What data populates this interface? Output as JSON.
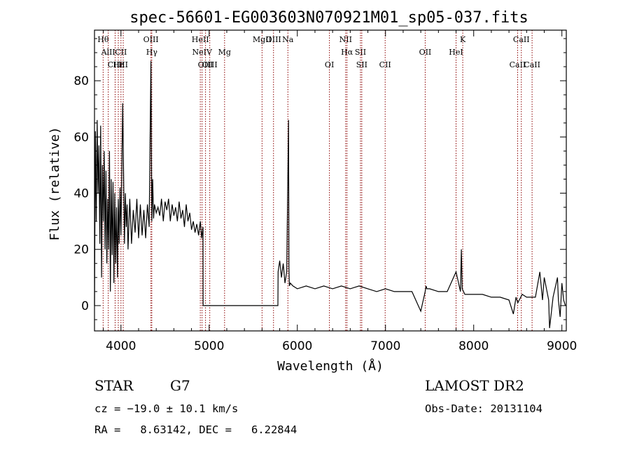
{
  "chart_data": {
    "type": "line",
    "title": "spec-56601-EG003603N070921M01_sp05-037.fits",
    "xlabel": "Wavelength (Å)",
    "ylabel": "Flux (relative)",
    "xlim": [
      3700,
      9050
    ],
    "ylim": [
      -9,
      98
    ],
    "xticks": [
      4000,
      5000,
      6000,
      7000,
      8000,
      9000
    ],
    "yticks": [
      0,
      20,
      40,
      60,
      80
    ],
    "grid": false,
    "line_color": "#000000",
    "marker_color": "#8b0000",
    "series": [
      {
        "x": [
          3700,
          3710,
          3720,
          3730,
          3740,
          3750,
          3760,
          3770,
          3780,
          3790,
          3800,
          3810,
          3820,
          3830,
          3840,
          3850,
          3860,
          3870,
          3880,
          3890,
          3900,
          3910,
          3920,
          3930,
          3940,
          3950,
          3960,
          3970,
          3980,
          3990,
          4000,
          4020,
          4040,
          4050,
          4060,
          4070,
          4080,
          4100,
          4120,
          4140,
          4160,
          4180,
          4200,
          4220,
          4240,
          4260,
          4280,
          4300,
          4320,
          4340,
          4350,
          4360,
          4370,
          4380,
          4400,
          4420,
          4440,
          4460,
          4480,
          4500,
          4520,
          4540,
          4560,
          4580,
          4600,
          4620,
          4640,
          4660,
          4680,
          4700,
          4720,
          4740,
          4760,
          4780,
          4800,
          4820,
          4840,
          4860,
          4880,
          4900,
          4915,
          4930,
          4932,
          5000,
          5200,
          5400,
          5600,
          5780,
          5782,
          5800,
          5820,
          5840,
          5860,
          5880,
          5900,
          5905,
          5910,
          5920,
          5950,
          6000,
          6100,
          6200,
          6300,
          6400,
          6500,
          6600,
          6700,
          6800,
          6900,
          7000,
          7100,
          7200,
          7300,
          7400,
          7450,
          7460,
          7470,
          7500,
          7600,
          7700,
          7800,
          7850,
          7860,
          7870,
          7900,
          8000,
          8100,
          8200,
          8300,
          8400,
          8450,
          8480,
          8500,
          8550,
          8600,
          8700,
          8750,
          8780,
          8800,
          8850,
          8860,
          8900,
          8950,
          8960,
          8980,
          9000,
          9020,
          9040
        ],
        "y": [
          0,
          62,
          30,
          66,
          40,
          57,
          22,
          64,
          10,
          50,
          30,
          55,
          20,
          48,
          15,
          38,
          20,
          55,
          5,
          45,
          18,
          44,
          8,
          40,
          15,
          35,
          10,
          38,
          22,
          42,
          25,
          72,
          22,
          40,
          28,
          36,
          20,
          38,
          22,
          34,
          26,
          38,
          24,
          36,
          25,
          34,
          24,
          36,
          28,
          87,
          30,
          45,
          31,
          36,
          33,
          35,
          32,
          38,
          30,
          37,
          34,
          38,
          30,
          36,
          32,
          35,
          30,
          37,
          31,
          34,
          28,
          36,
          30,
          33,
          27,
          30,
          26,
          29,
          25,
          30,
          24,
          28,
          0,
          0,
          0,
          0,
          0,
          0,
          12,
          16,
          10,
          15,
          8,
          12,
          66,
          14,
          7,
          8,
          7,
          6,
          7,
          6,
          7,
          6,
          7,
          6,
          7,
          6,
          5,
          6,
          5,
          5,
          5,
          -2,
          5,
          7,
          6,
          6,
          5,
          5,
          12,
          5,
          20,
          6,
          4,
          4,
          4,
          3,
          3,
          2,
          -3,
          3,
          1,
          4,
          3,
          3,
          12,
          2,
          10,
          2,
          -8,
          3,
          10,
          2,
          -4,
          8,
          2,
          0
        ]
      }
    ],
    "line_markers": [
      {
        "label": "Hθ",
        "x": 3798,
        "row": 0
      },
      {
        "label": "AlII",
        "x": 3856,
        "row": 1
      },
      {
        "label": "CIII",
        "x": 3934,
        "row": 2
      },
      {
        "label": "Hε",
        "x": 3970,
        "row": 2
      },
      {
        "label": "CII",
        "x": 4000,
        "row": 1
      },
      {
        "label": "HI",
        "x": 4026,
        "row": 2
      },
      {
        "label": "OIII",
        "x": 4340,
        "row": 0
      },
      {
        "label": "Hγ",
        "x": 4350,
        "row": 1
      },
      {
        "label": "HeII",
        "x": 4900,
        "row": 0
      },
      {
        "label": "NeIV",
        "x": 4920,
        "row": 1
      },
      {
        "label": "OIII",
        "x": 4959,
        "row": 2
      },
      {
        "label": "OIII",
        "x": 5007,
        "row": 2
      },
      {
        "label": "Mg",
        "x": 5175,
        "row": 1
      },
      {
        "label": "MgII",
        "x": 5600,
        "row": 0
      },
      {
        "label": "OIII",
        "x": 5730,
        "row": 0
      },
      {
        "label": "Na",
        "x": 5893,
        "row": 0
      },
      {
        "label": "OI",
        "x": 6364,
        "row": 2
      },
      {
        "label": "NII",
        "x": 6548,
        "row": 0
      },
      {
        "label": "Hα",
        "x": 6563,
        "row": 1
      },
      {
        "label": "SII",
        "x": 6716,
        "row": 1
      },
      {
        "label": "SII",
        "x": 6731,
        "row": 2
      },
      {
        "label": "CII",
        "x": 6996,
        "row": 2
      },
      {
        "label": "OII",
        "x": 7450,
        "row": 1
      },
      {
        "label": "K",
        "x": 7876,
        "row": 0
      },
      {
        "label": "HeI",
        "x": 7800,
        "row": 1
      },
      {
        "label": "CaII",
        "x": 8540,
        "row": 0
      },
      {
        "label": "CaII",
        "x": 8498,
        "row": 2
      },
      {
        "label": "CaII",
        "x": 8662,
        "row": 2
      }
    ]
  },
  "info": {
    "class_label": "STAR",
    "subclass_label": "G7",
    "survey_label": "LAMOST DR2",
    "redshift_text": "cz = −19.0 ± 10.1 km/s",
    "obsdate_text": "Obs-Date: 20131104",
    "coords_text": "RA =   8.63142, DEC =   6.22844"
  }
}
